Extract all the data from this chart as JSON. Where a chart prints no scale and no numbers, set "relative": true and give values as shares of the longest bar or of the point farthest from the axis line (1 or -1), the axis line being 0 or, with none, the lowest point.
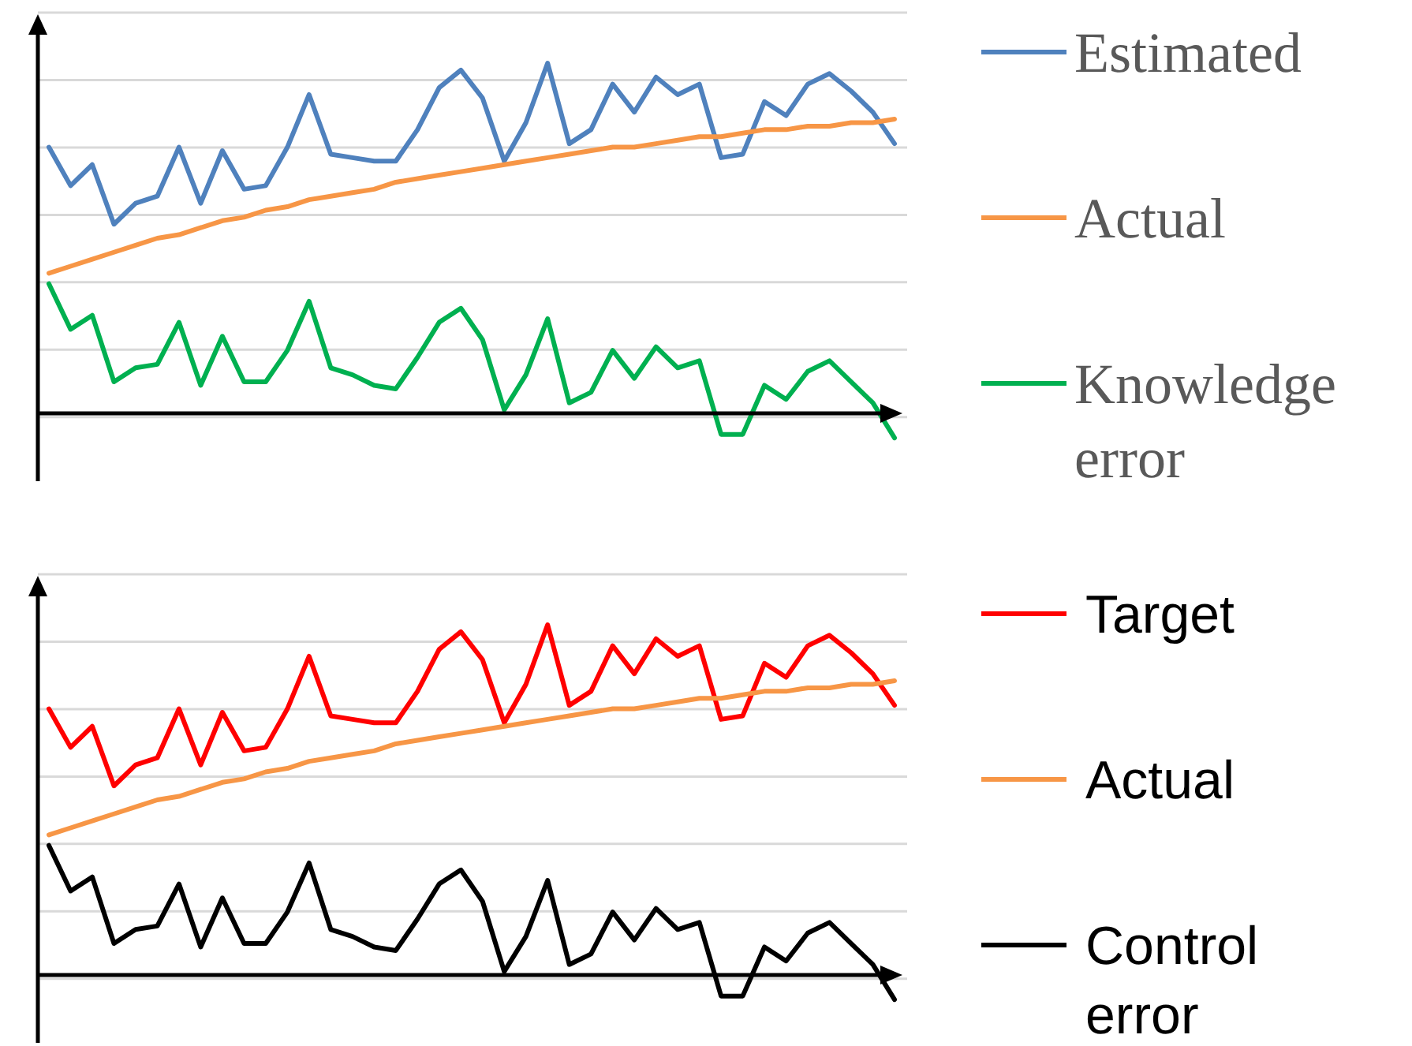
{
  "chart_data": [
    {
      "type": "line",
      "relative": true,
      "grid": true,
      "legend": "right",
      "categories": [
        null,
        null,
        null,
        null,
        null,
        null,
        null,
        null,
        null,
        null,
        null,
        null,
        null,
        null,
        null,
        null,
        null,
        null,
        null,
        null,
        null,
        null,
        null,
        null,
        null,
        null,
        null,
        null,
        null,
        null,
        null,
        null,
        null,
        null,
        null,
        null,
        null,
        null,
        null,
        null
      ],
      "series": [
        {
          "name": "Estimated",
          "color": "#4f81bd",
          "values": [
            0.76,
            0.65,
            0.71,
            0.54,
            0.6,
            0.62,
            0.76,
            0.6,
            0.75,
            0.64,
            0.65,
            0.76,
            0.91,
            0.74,
            0.73,
            0.72,
            0.72,
            0.81,
            0.93,
            0.98,
            0.9,
            0.72,
            0.83,
            1,
            0.77,
            0.81,
            0.94,
            0.86,
            0.96,
            0.91,
            0.94,
            0.73,
            0.74,
            0.89,
            0.85,
            0.94,
            0.97,
            0.92,
            0.86,
            0.77
          ]
        },
        {
          "name": "Actual",
          "color": "#f79646",
          "values": [
            0.4,
            0.42,
            0.44,
            0.46,
            0.48,
            0.5,
            0.51,
            0.53,
            0.55,
            0.56,
            0.58,
            0.59,
            0.61,
            0.62,
            0.63,
            0.64,
            0.66,
            0.67,
            0.68,
            0.69,
            0.7,
            0.71,
            0.72,
            0.73,
            0.74,
            0.75,
            0.76,
            0.76,
            0.77,
            0.78,
            0.79,
            0.79,
            0.8,
            0.81,
            0.81,
            0.82,
            0.82,
            0.83,
            0.83,
            0.84
          ]
        },
        {
          "name": "Knowledge error",
          "color": "#00b050",
          "values": [
            0.37,
            0.24,
            0.28,
            0.09,
            0.13,
            0.14,
            0.26,
            0.08,
            0.22,
            0.09,
            0.09,
            0.18,
            0.32,
            0.13,
            0.11,
            0.08,
            0.07,
            0.16,
            0.26,
            0.3,
            0.21,
            0.01,
            0.11,
            0.27,
            0.03,
            0.06,
            0.18,
            0.1,
            0.19,
            0.13,
            0.15,
            -0.06,
            -0.06,
            0.08,
            0.04,
            0.12,
            0.15,
            0.09,
            0.03,
            -0.07
          ]
        }
      ]
    },
    {
      "type": "line",
      "relative": true,
      "grid": true,
      "legend": "right",
      "categories": [
        null,
        null,
        null,
        null,
        null,
        null,
        null,
        null,
        null,
        null,
        null,
        null,
        null,
        null,
        null,
        null,
        null,
        null,
        null,
        null,
        null,
        null,
        null,
        null,
        null,
        null,
        null,
        null,
        null,
        null,
        null,
        null,
        null,
        null,
        null,
        null,
        null,
        null,
        null,
        null
      ],
      "series": [
        {
          "name": "Target",
          "color": "#ff0000",
          "values": [
            0.76,
            0.65,
            0.71,
            0.54,
            0.6,
            0.62,
            0.76,
            0.6,
            0.75,
            0.64,
            0.65,
            0.76,
            0.91,
            0.74,
            0.73,
            0.72,
            0.72,
            0.81,
            0.93,
            0.98,
            0.9,
            0.72,
            0.83,
            1,
            0.77,
            0.81,
            0.94,
            0.86,
            0.96,
            0.91,
            0.94,
            0.73,
            0.74,
            0.89,
            0.85,
            0.94,
            0.97,
            0.92,
            0.86,
            0.77
          ]
        },
        {
          "name": "Actual",
          "color": "#f79646",
          "values": [
            0.4,
            0.42,
            0.44,
            0.46,
            0.48,
            0.5,
            0.51,
            0.53,
            0.55,
            0.56,
            0.58,
            0.59,
            0.61,
            0.62,
            0.63,
            0.64,
            0.66,
            0.67,
            0.68,
            0.69,
            0.7,
            0.71,
            0.72,
            0.73,
            0.74,
            0.75,
            0.76,
            0.76,
            0.77,
            0.78,
            0.79,
            0.79,
            0.8,
            0.81,
            0.81,
            0.82,
            0.82,
            0.83,
            0.83,
            0.84
          ]
        },
        {
          "name": "Control error",
          "color": "#000000",
          "values": [
            0.37,
            0.24,
            0.28,
            0.09,
            0.13,
            0.14,
            0.26,
            0.08,
            0.22,
            0.09,
            0.09,
            0.18,
            0.32,
            0.13,
            0.11,
            0.08,
            0.07,
            0.16,
            0.26,
            0.3,
            0.21,
            0.01,
            0.11,
            0.27,
            0.03,
            0.06,
            0.18,
            0.1,
            0.19,
            0.13,
            0.15,
            -0.06,
            -0.06,
            0.08,
            0.04,
            0.12,
            0.15,
            0.09,
            0.03,
            -0.07
          ]
        }
      ]
    }
  ]
}
